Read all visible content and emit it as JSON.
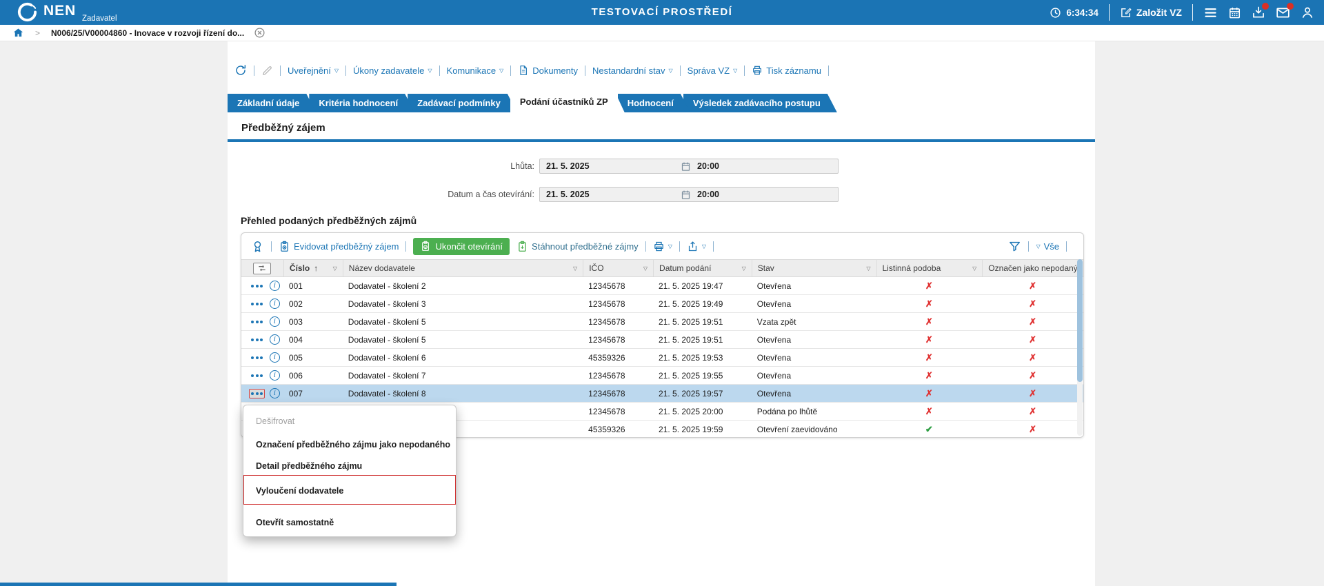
{
  "topbar": {
    "logo": "NEN",
    "logo_sub": "Zadavatel",
    "environment_title": "TESTOVACÍ PROSTŘEDÍ",
    "time": "6:34:34",
    "create_vz": "Založit VZ"
  },
  "breadcrumb": {
    "item": "N006/25/V00004860 - Inovace v rozvoji řízení do..."
  },
  "vz_toolbar": {
    "links": [
      {
        "label": "Uveřejnění",
        "dropdown": true,
        "icon": null
      },
      {
        "label": "Úkony zadavatele",
        "dropdown": true,
        "icon": null
      },
      {
        "label": "Komunikace",
        "dropdown": true,
        "icon": null
      },
      {
        "label": "Dokumenty",
        "dropdown": false,
        "icon": "document"
      },
      {
        "label": "Nestandardní stav",
        "dropdown": true,
        "icon": null
      },
      {
        "label": "Správa VZ",
        "dropdown": true,
        "icon": null
      },
      {
        "label": "Tisk záznamu",
        "dropdown": false,
        "icon": "printer"
      }
    ]
  },
  "tabs": [
    {
      "label": "Základní údaje",
      "active": false
    },
    {
      "label": "Kritéria hodnocení",
      "active": false
    },
    {
      "label": "Zadávací podmínky",
      "active": false
    },
    {
      "label": "Podání účastníků ZP",
      "active": true
    },
    {
      "label": "Hodnocení",
      "active": false
    },
    {
      "label": "Výsledek zadávacího postupu",
      "active": false
    }
  ],
  "prelim": {
    "title": "Předběžný zájem",
    "fields": [
      {
        "label": "Lhůta:",
        "date": "21. 5. 2025",
        "time": "20:00"
      },
      {
        "label": "Datum a čas otevírání:",
        "date": "21. 5. 2025",
        "time": "20:00"
      }
    ]
  },
  "table": {
    "title": "Přehled podaných předběžných zájmů",
    "toolbar": {
      "evidovat": "Evidovat předběžný zájem",
      "ukoncit": "Ukončit otevírání",
      "stahnout": "Stáhnout předběžné zájmy",
      "vse": "Vše"
    },
    "columns": [
      {
        "label": "Číslo",
        "sorted": "asc",
        "filter": true
      },
      {
        "label": "Název dodavatele",
        "sorted": null,
        "filter": true
      },
      {
        "label": "IČO",
        "sorted": null,
        "filter": true
      },
      {
        "label": "Datum podání",
        "sorted": null,
        "filter": true
      },
      {
        "label": "Stav",
        "sorted": null,
        "filter": true
      },
      {
        "label": "Listinná podoba",
        "sorted": null,
        "filter": true
      },
      {
        "label": "Označen jako nepodaný",
        "sorted": null,
        "filter": false
      }
    ],
    "rows": [
      {
        "cislo": "001",
        "nazev": "Dodavatel - školení 2",
        "ico": "12345678",
        "datum": "21. 5. 2025 19:47",
        "stav": "Otevřena",
        "listinna": false,
        "nepodany": false,
        "selected": false
      },
      {
        "cislo": "002",
        "nazev": "Dodavatel - školení 3",
        "ico": "12345678",
        "datum": "21. 5. 2025 19:49",
        "stav": "Otevřena",
        "listinna": false,
        "nepodany": false,
        "selected": false
      },
      {
        "cislo": "003",
        "nazev": "Dodavatel - školení 5",
        "ico": "12345678",
        "datum": "21. 5. 2025 19:51",
        "stav": "Vzata zpět",
        "listinna": false,
        "nepodany": false,
        "selected": false
      },
      {
        "cislo": "004",
        "nazev": "Dodavatel - školení 5",
        "ico": "12345678",
        "datum": "21. 5. 2025 19:51",
        "stav": "Otevřena",
        "listinna": false,
        "nepodany": false,
        "selected": false
      },
      {
        "cislo": "005",
        "nazev": "Dodavatel - školení 6",
        "ico": "45359326",
        "datum": "21. 5. 2025 19:53",
        "stav": "Otevřena",
        "listinna": false,
        "nepodany": false,
        "selected": false
      },
      {
        "cislo": "006",
        "nazev": "Dodavatel - školení 7",
        "ico": "12345678",
        "datum": "21. 5. 2025 19:55",
        "stav": "Otevřena",
        "listinna": false,
        "nepodany": false,
        "selected": false
      },
      {
        "cislo": "007",
        "nazev": "Dodavatel - školení 8",
        "ico": "12345678",
        "datum": "21. 5. 2025 19:57",
        "stav": "Otevřena",
        "listinna": false,
        "nepodany": false,
        "selected": true
      },
      {
        "cislo": "",
        "nazev": "",
        "ico": "12345678",
        "datum": "21. 5. 2025 20:00",
        "stav": "Podána po lhůtě",
        "listinna": false,
        "nepodany": false,
        "selected": false
      },
      {
        "cislo": "",
        "nazev": "",
        "ico": "45359326",
        "datum": "21. 5. 2025 19:59",
        "stav": "Otevření zaevidováno",
        "listinna": true,
        "nepodany": false,
        "selected": false
      }
    ]
  },
  "context_menu": {
    "items": [
      {
        "label": "Dešifrovat",
        "disabled": true,
        "highlighted": false
      },
      {
        "label": "Označení předběžného zájmu jako nepodaného",
        "disabled": false,
        "highlighted": false
      },
      {
        "label": "Detail předběžného zájmu",
        "disabled": false,
        "highlighted": false
      },
      {
        "label": "Vyloučení dodavatele",
        "disabled": false,
        "highlighted": true
      },
      {
        "label": "Otevřít samostatně",
        "disabled": false,
        "highlighted": false
      }
    ]
  },
  "colors": {
    "topbar_blue": "#1b74b4",
    "accent_blue": "#1b75b5",
    "button_green": "#4caf50",
    "badge_red": "#d93025",
    "mark_red": "#e03131",
    "mark_green": "#2f9e44",
    "selected_row": "#bcd8ee",
    "highlight_border_red": "#cf2e2e"
  }
}
